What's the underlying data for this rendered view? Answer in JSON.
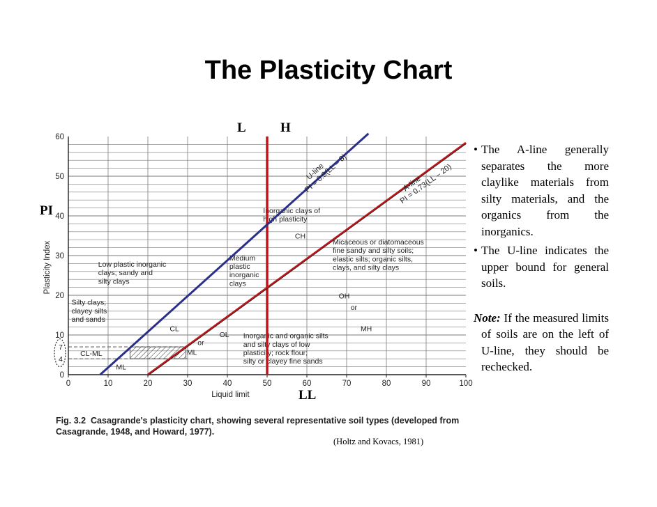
{
  "slide_title": "The Plasticity Chart",
  "overlay_labels": {
    "low": "L",
    "high": "H",
    "pi": "PI",
    "ll": "LL"
  },
  "bullets": [
    "The A-line generally separates the more claylike materials from silty materials, and the organics from the inorganics.",
    "The U-line indicates the upper bound for general soils."
  ],
  "note": {
    "label": "Note:",
    "text": "If the measured limits of soils are on the left of U-line, they should be rechecked."
  },
  "caption": {
    "fig": "Fig. 3.2",
    "text": "Casagrande's plasticity chart, showing several representative soil types (developed from Casagrande, 1948, and Howard, 1977)."
  },
  "source": "(Holtz and Kovacs, 1981)",
  "chart_data": {
    "type": "line",
    "xlabel": "Liquid limit",
    "ylabel": "Plasticity Index",
    "xlim": [
      0,
      100
    ],
    "ylim": [
      0,
      60
    ],
    "x_ticks": [
      "0",
      "10",
      "20",
      "30",
      "40",
      "50",
      "60",
      "70",
      "80",
      "90",
      "100"
    ],
    "y_ticks": [
      "0",
      "10",
      "20",
      "30",
      "40",
      "50",
      "60"
    ],
    "extra_y_ticks": [
      "4",
      "7"
    ],
    "grid": true,
    "series": [
      {
        "name": "U-line",
        "label_line1": "U-line",
        "label_line2": "PI = 0.9(LL – 8)",
        "x": [
          8,
          75.5
        ],
        "y": [
          0,
          60.75
        ]
      },
      {
        "name": "A-line",
        "label_line1": "A-line",
        "label_line2": "PI = 0.73(LL – 20)",
        "x": [
          20,
          100
        ],
        "y": [
          0,
          58.4
        ]
      }
    ],
    "divider_ll": 50,
    "hatched_zone": {
      "x": [
        15.5,
        29.6
      ],
      "y": [
        4,
        7
      ]
    },
    "zones": [
      {
        "lines": [
          "Inorganic clays of",
          "high plasticity"
        ],
        "x": 49,
        "y": 40.7
      },
      {
        "lines": [
          "CH"
        ],
        "x": 57,
        "y": 34.3
      },
      {
        "lines": [
          "Micaceous or diatomaceous",
          "fine sandy and silty soils;",
          "elastic silts; organic silts,",
          "clays, and silty clays"
        ],
        "x": 66.5,
        "y": 32.8
      },
      {
        "lines": [
          "Medium",
          "plastic",
          "inorganic",
          "clays"
        ],
        "x": 40.5,
        "y": 28.8
      },
      {
        "lines": [
          "Low plastic inorganic",
          "clays; sandy and",
          "silty clays"
        ],
        "x": 7.5,
        "y": 27.2
      },
      {
        "lines": [
          "OH"
        ],
        "x": 68,
        "y": 19.2
      },
      {
        "lines": [
          "or"
        ],
        "x": 71,
        "y": 16.3
      },
      {
        "lines": [
          "MH"
        ],
        "x": 73.5,
        "y": 11
      },
      {
        "lines": [
          "Silty clays;",
          "clayey silts",
          "and sands"
        ],
        "x": 0.8,
        "y": 17.6
      },
      {
        "lines": [
          "CL"
        ],
        "x": 25.5,
        "y": 11
      },
      {
        "lines": [
          "OL"
        ],
        "x": 38,
        "y": 9.5
      },
      {
        "lines": [
          "or"
        ],
        "x": 32.5,
        "y": 7.5
      },
      {
        "lines": [
          "Inorganic and organic silts",
          "and silty clays of low",
          "plasticity; rock flour;",
          "silty or clayey fine sands"
        ],
        "x": 44,
        "y": 9.2
      },
      {
        "lines": [
          "CL-ML"
        ],
        "x": 3,
        "y": 4.7
      },
      {
        "lines": [
          "ML"
        ],
        "x": 29.8,
        "y": 5
      },
      {
        "lines": [
          "ML"
        ],
        "x": 12,
        "y": 1.3
      }
    ],
    "colors": {
      "u_line": "#2b2f8a",
      "a_line": "#c0161b",
      "divider": "#c0161b",
      "axis": "#222222",
      "grid": "#7a7a7a"
    }
  }
}
